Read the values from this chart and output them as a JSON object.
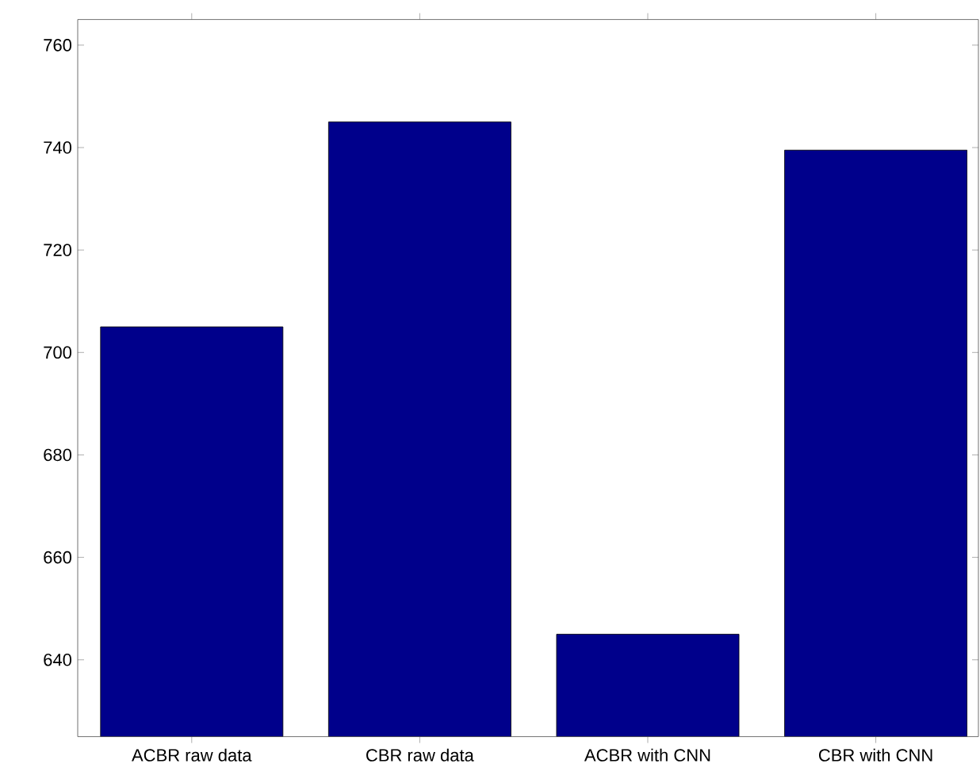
{
  "chart_data": {
    "type": "bar",
    "categories": [
      "ACBR raw data",
      "CBR raw data",
      "ACBR with CNN",
      "CBR with CNN"
    ],
    "values": [
      705,
      745,
      645,
      739.5
    ],
    "color": "#00008b",
    "ylim": [
      625,
      765
    ],
    "yticks": [
      640,
      660,
      680,
      700,
      720,
      740,
      760
    ],
    "grid": false
  }
}
